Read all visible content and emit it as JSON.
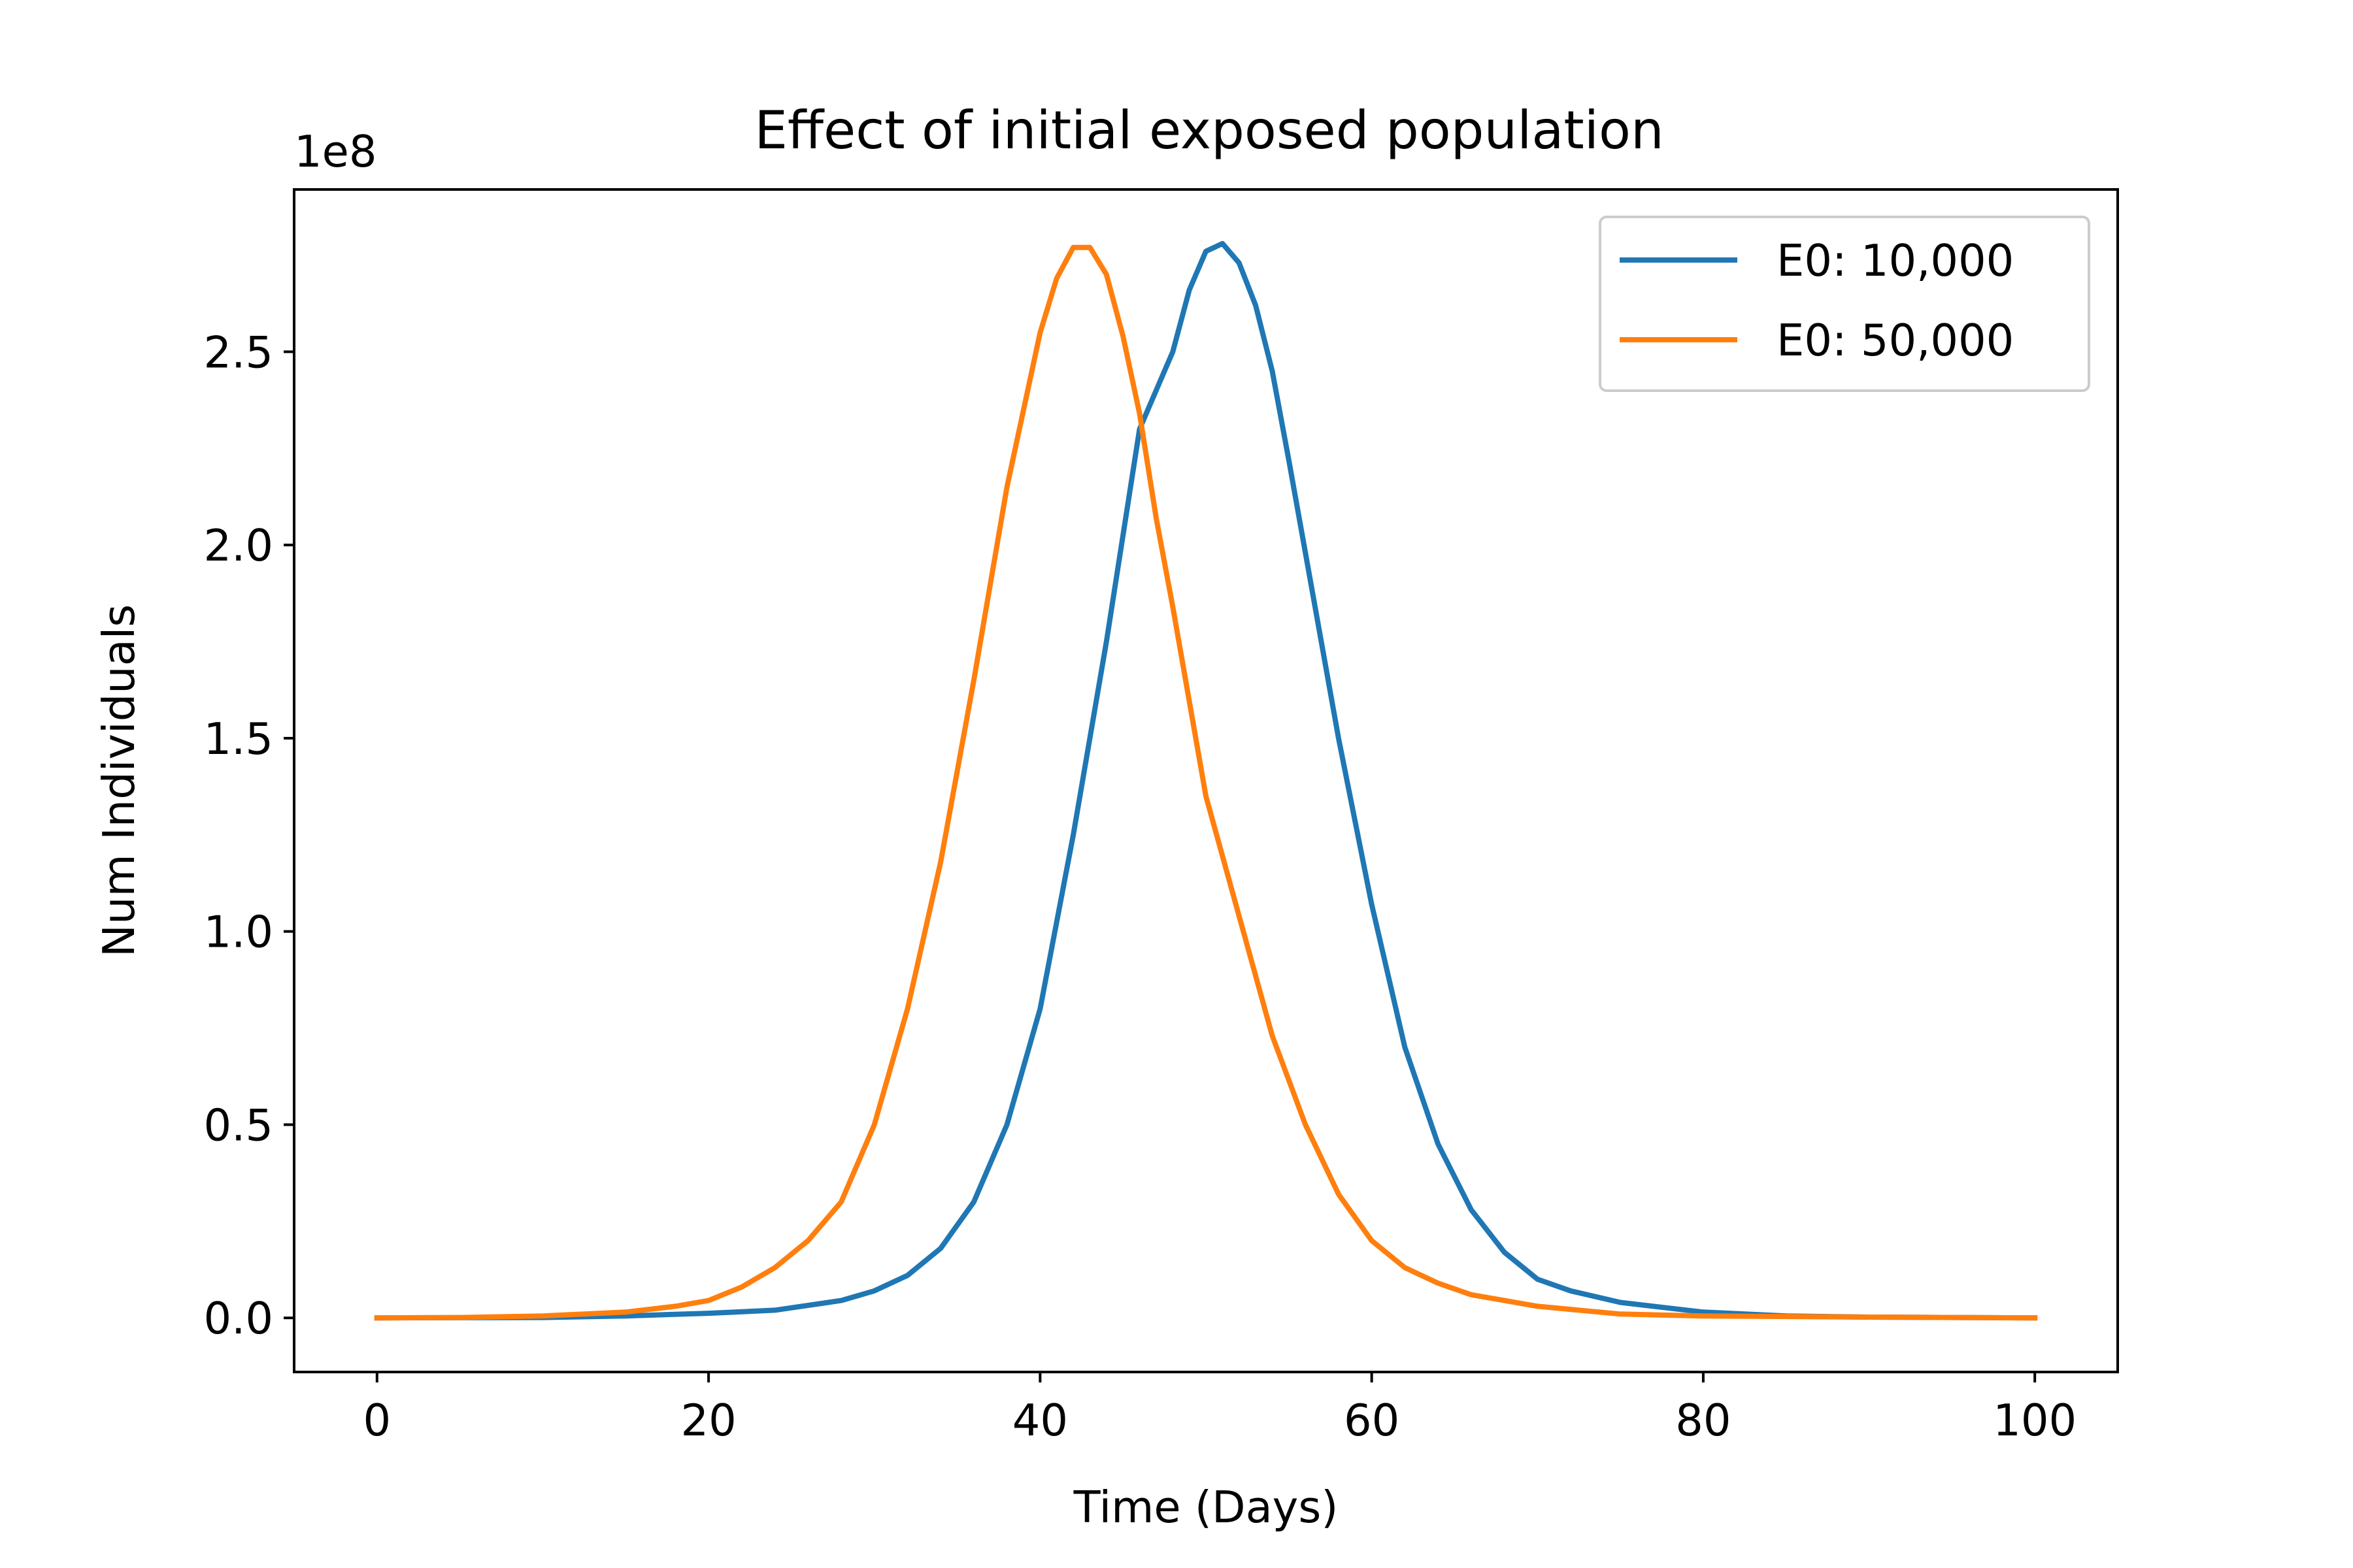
{
  "chart_data": {
    "type": "line",
    "title": "Effect of initial exposed population",
    "xlabel": "Time (Days)",
    "ylabel": "Num Individuals",
    "y_offset_label": "1e8",
    "xlim": [
      -5,
      105
    ],
    "ylim": [
      -0.14,
      2.92
    ],
    "x_ticks": [
      0,
      20,
      40,
      60,
      80,
      100
    ],
    "x_tick_labels": [
      "0",
      "20",
      "40",
      "60",
      "80",
      "100"
    ],
    "y_ticks": [
      0.0,
      0.5,
      1.0,
      1.5,
      2.0,
      2.5
    ],
    "y_tick_labels": [
      "0.0",
      "0.5",
      "1.0",
      "1.5",
      "2.0",
      "2.5"
    ],
    "grid": false,
    "legend_position": "upper right",
    "series": [
      {
        "name": "E0: 10,000",
        "color": "#1f77b4",
        "x": [
          0,
          10,
          15,
          20,
          24,
          28,
          30,
          32,
          34,
          36,
          38,
          40,
          42,
          44,
          46,
          48,
          49,
          50,
          51,
          52,
          53,
          54,
          55,
          56,
          58,
          60,
          62,
          64,
          66,
          68,
          70,
          72,
          75,
          80,
          85,
          90,
          100
        ],
        "y": [
          0.0,
          0.001,
          0.005,
          0.012,
          0.02,
          0.045,
          0.07,
          0.11,
          0.18,
          0.3,
          0.5,
          0.8,
          1.25,
          1.75,
          2.3,
          2.5,
          2.66,
          2.76,
          2.78,
          2.73,
          2.62,
          2.45,
          2.22,
          1.98,
          1.5,
          1.07,
          0.7,
          0.45,
          0.28,
          0.17,
          0.1,
          0.07,
          0.04,
          0.015,
          0.005,
          0.002,
          0.0
        ]
      },
      {
        "name": "E0: 50,000",
        "color": "#ff7f0e",
        "x": [
          0,
          5,
          10,
          15,
          18,
          20,
          22,
          24,
          26,
          28,
          30,
          32,
          34,
          36,
          38,
          40,
          41,
          42,
          43,
          44,
          45,
          46,
          47,
          48,
          50,
          52,
          54,
          56,
          58,
          60,
          62,
          64,
          66,
          70,
          75,
          80,
          90,
          100
        ],
        "y": [
          0.0,
          0.001,
          0.005,
          0.015,
          0.03,
          0.045,
          0.08,
          0.13,
          0.2,
          0.3,
          0.5,
          0.8,
          1.18,
          1.65,
          2.15,
          2.55,
          2.69,
          2.77,
          2.77,
          2.7,
          2.54,
          2.34,
          2.07,
          1.84,
          1.35,
          1.04,
          0.73,
          0.5,
          0.32,
          0.2,
          0.13,
          0.09,
          0.06,
          0.03,
          0.01,
          0.005,
          0.002,
          0.0
        ]
      }
    ]
  }
}
